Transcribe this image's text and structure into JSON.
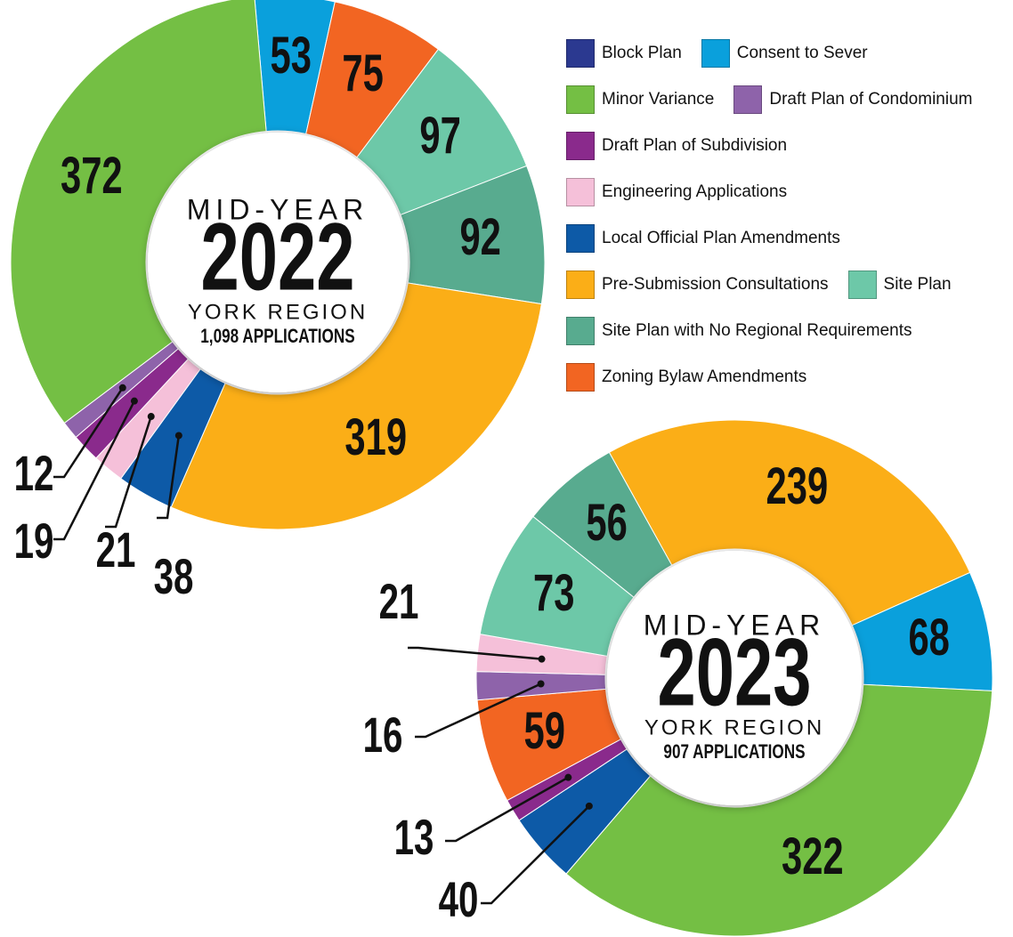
{
  "legend": {
    "items": [
      {
        "name": "Block Plan",
        "color": "#2b3990"
      },
      {
        "name": "Consent to Sever",
        "color": "#0aa0dc"
      },
      {
        "name": "Minor Variance",
        "color": "#74bf44"
      },
      {
        "name": "Draft Plan of Condominium",
        "color": "#8e63aa"
      },
      {
        "name": "Draft Plan of Subdivision",
        "color": "#8a2a8c"
      },
      {
        "name": "Engineering Applications",
        "color": "#f5c0d9"
      },
      {
        "name": "Local Official Plan Amendments",
        "color": "#0d5aa7"
      },
      {
        "name": "Pre-Submission Consultations",
        "color": "#fbae17"
      },
      {
        "name": "Site Plan",
        "color": "#6dc8a8"
      },
      {
        "name": "Site Plan with No Regional Requirements",
        "color": "#58ab8f"
      },
      {
        "name": "Zoning Bylaw Amendments",
        "color": "#f26522"
      }
    ]
  },
  "chart_data": [
    {
      "type": "donut",
      "center_text": [
        "MID-YEAR",
        "2022",
        "YORK REGION",
        "1,098 APPLICATIONS"
      ],
      "categories": [
        "Consent to Sever",
        "Zoning Bylaw Amendments",
        "Site Plan",
        "Site Plan with No Regional Requirements",
        "Pre-Submission Consultations",
        "Local Official Plan Amendments",
        "Engineering Applications",
        "Draft Plan of Subdivision",
        "Draft Plan of Condominium",
        "Minor Variance"
      ],
      "values": [
        53,
        75,
        97,
        92,
        319,
        38,
        21,
        19,
        12,
        372
      ]
    },
    {
      "type": "donut",
      "center_text": [
        "MID-YEAR",
        "2023",
        "YORK REGION",
        "907 APPLICATIONS"
      ],
      "categories": [
        "Pre-Submission Consultations",
        "Consent to Sever",
        "Minor Variance",
        "Local Official Plan Amendments",
        "Draft Plan of Subdivision",
        "Zoning Bylaw Amendments",
        "Draft Plan of Condominium",
        "Engineering Applications",
        "Site Plan",
        "Site Plan with No Regional Requirements"
      ],
      "values": [
        239,
        68,
        322,
        40,
        13,
        59,
        16,
        21,
        73,
        56
      ]
    }
  ]
}
